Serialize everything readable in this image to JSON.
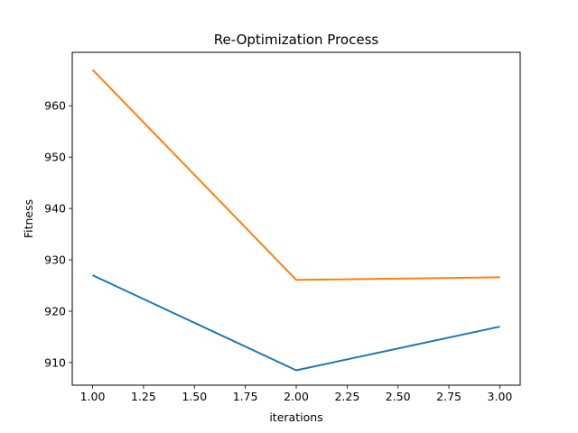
{
  "chart_data": {
    "type": "line",
    "title": "Re-Optimization Process",
    "xlabel": "iterations",
    "ylabel": "Fitness",
    "xlim": [
      0.9,
      3.1
    ],
    "ylim": [
      905.6,
      970.4
    ],
    "xticks": [
      "1.00",
      "1.25",
      "1.50",
      "1.75",
      "2.00",
      "2.25",
      "2.50",
      "2.75",
      "3.00"
    ],
    "yticks": [
      "910",
      "920",
      "930",
      "940",
      "950",
      "960"
    ],
    "grid": false,
    "x": [
      1.0,
      2.0,
      3.0
    ],
    "series": [
      {
        "values": [
          927.0,
          908.5,
          917.0
        ],
        "color": "#1f77b4"
      },
      {
        "values": [
          967.0,
          926.1,
          926.6
        ],
        "color": "#ff7f0e"
      }
    ]
  }
}
